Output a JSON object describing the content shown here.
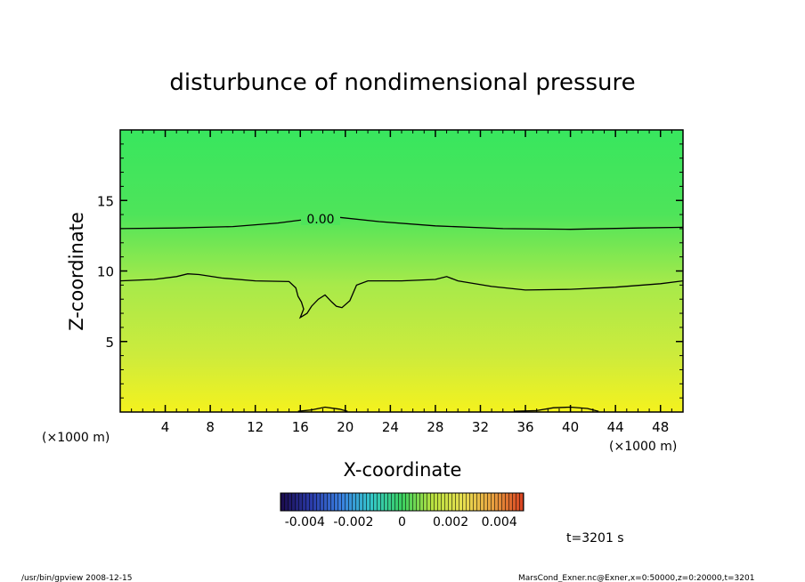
{
  "chart_data": {
    "type": "heatmap",
    "title": "disturbunce of nondimensional pressure",
    "xlabel": "X-coordinate",
    "ylabel": "Z-coordinate",
    "x_unit": "(×1000 m)",
    "x_unit_left": "(×1000 m)",
    "xlim": [
      0,
      50
    ],
    "ylim": [
      0,
      20
    ],
    "x_ticks": [
      4,
      8,
      12,
      16,
      20,
      24,
      28,
      32,
      36,
      40,
      44,
      48
    ],
    "x_tick_labels": [
      "4",
      "8",
      "12",
      "16",
      "20",
      "24",
      "28",
      "32",
      "36",
      "40",
      "44",
      "48"
    ],
    "y_ticks": [
      5,
      10,
      15
    ],
    "y_tick_labels": [
      "5",
      "10",
      "15"
    ],
    "contours": [
      {
        "level": "0.00",
        "labeled": true,
        "points": [
          [
            0,
            13.0
          ],
          [
            5,
            13.05
          ],
          [
            10,
            13.15
          ],
          [
            14,
            13.4
          ],
          [
            16,
            13.6
          ],
          [
            19.5,
            13.8
          ],
          [
            23,
            13.5
          ],
          [
            28,
            13.2
          ],
          [
            34,
            13.0
          ],
          [
            40,
            12.95
          ],
          [
            46,
            13.05
          ],
          [
            50,
            13.1
          ]
        ]
      },
      {
        "level": "",
        "labeled": false,
        "points": [
          [
            0,
            9.3
          ],
          [
            3,
            9.4
          ],
          [
            5,
            9.6
          ],
          [
            6,
            9.8
          ],
          [
            7,
            9.75
          ],
          [
            9,
            9.5
          ],
          [
            12,
            9.3
          ],
          [
            15,
            9.25
          ],
          [
            15.6,
            8.8
          ],
          [
            15.8,
            8.2
          ],
          [
            16.1,
            7.8
          ],
          [
            16.3,
            7.3
          ],
          [
            16.0,
            6.7
          ],
          [
            16.6,
            7.0
          ],
          [
            17.0,
            7.5
          ],
          [
            17.6,
            8.0
          ],
          [
            18.2,
            8.3
          ],
          [
            18.8,
            7.8
          ],
          [
            19.2,
            7.5
          ],
          [
            19.7,
            7.4
          ],
          [
            20.4,
            7.9
          ],
          [
            21.0,
            9.0
          ],
          [
            22,
            9.3
          ],
          [
            25,
            9.3
          ],
          [
            28,
            9.4
          ],
          [
            29,
            9.6
          ],
          [
            30,
            9.3
          ],
          [
            33,
            8.9
          ],
          [
            36,
            8.65
          ],
          [
            40,
            8.7
          ],
          [
            44,
            8.85
          ],
          [
            48,
            9.1
          ],
          [
            50,
            9.3
          ]
        ]
      },
      {
        "level": "",
        "labeled": false,
        "points": [
          [
            15.8,
            0.05
          ],
          [
            17,
            0.15
          ],
          [
            18.2,
            0.35
          ],
          [
            19.5,
            0.2
          ],
          [
            20.2,
            0.05
          ]
        ]
      },
      {
        "level": "",
        "labeled": false,
        "points": [
          [
            35,
            0.05
          ],
          [
            37,
            0.1
          ],
          [
            38.5,
            0.3
          ],
          [
            40,
            0.35
          ],
          [
            41.5,
            0.25
          ],
          [
            42.5,
            0.05
          ]
        ]
      }
    ],
    "colorbar": {
      "range": [
        -0.005,
        0.005
      ],
      "tick_labels": [
        "-0.004",
        "-0.002",
        "0",
        "0.002",
        "0.004"
      ],
      "tick_values": [
        -0.004,
        -0.002,
        0,
        0.002,
        0.004
      ],
      "colors": [
        "#1a0a4a",
        "#2a3aa8",
        "#3a80e0",
        "#34c8c8",
        "#3ad060",
        "#b8e040",
        "#e8e050",
        "#e8a040",
        "#d84020"
      ]
    },
    "field_colors": {
      "top": "#38e65e",
      "upper": "#4ee45a",
      "middle": "#a8ea4a",
      "lower": "#cdeb3c",
      "bottom": "#f4f21e"
    }
  },
  "annotations": {
    "time": "t=3201 s",
    "footer_left": "/usr/bin/gpview   2008-12-15",
    "footer_right": "MarsCond_Exner.nc@Exner,x=0:50000,z=0:20000,t=3201"
  }
}
